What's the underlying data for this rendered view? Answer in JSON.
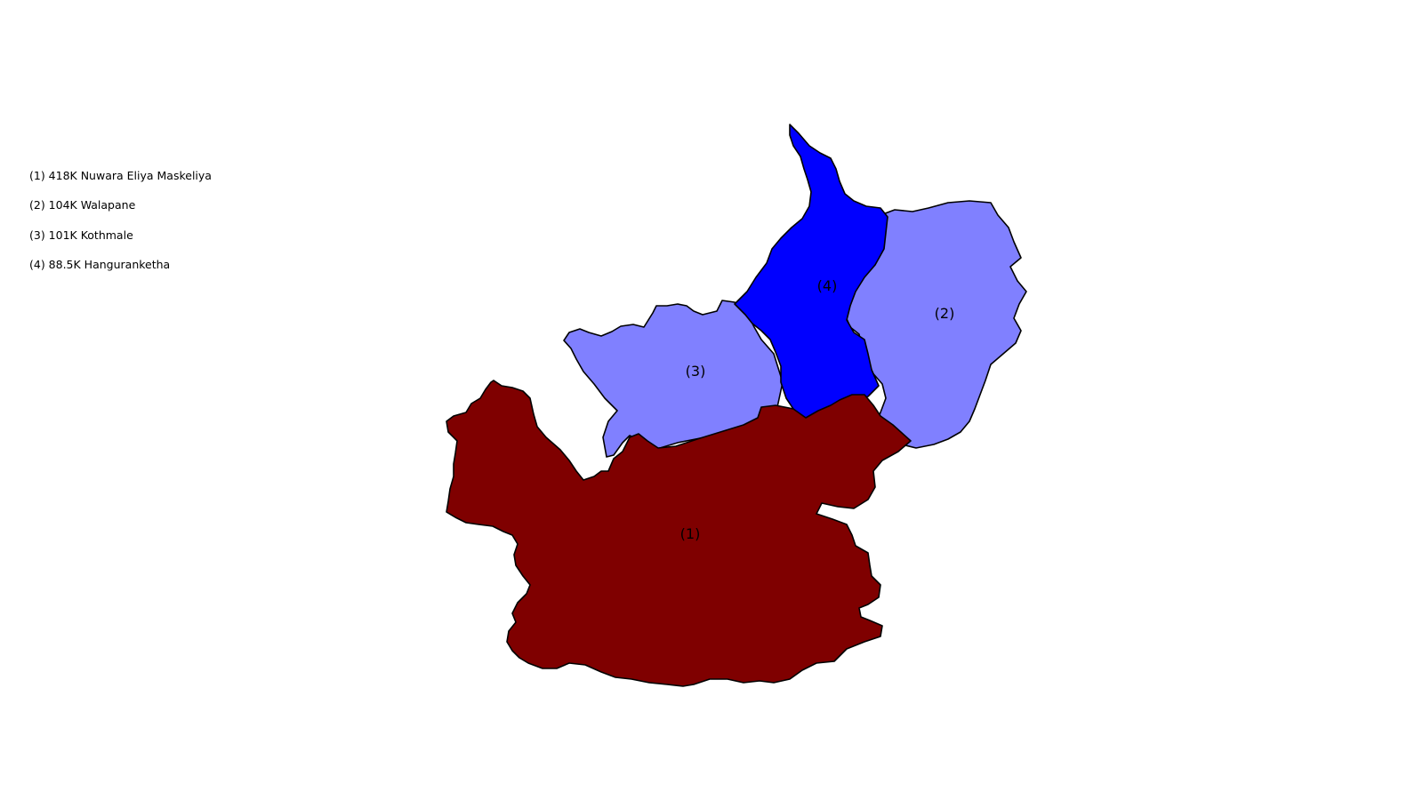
{
  "legend": [
    {
      "marker": "(1)",
      "value": "418K",
      "name": "Nuwara Eliya Maskeliya",
      "text": "(1) 418K Nuwara Eliya Maskeliya"
    },
    {
      "marker": "(2)",
      "value": "104K",
      "name": "Walapane",
      "text": "(2) 104K Walapane"
    },
    {
      "marker": "(3)",
      "value": "101K",
      "name": "Kothmale",
      "text": "(3) 101K Kothmale"
    },
    {
      "marker": "(4)",
      "value": "88.5K",
      "name": "Hanguranketha",
      "text": "(4) 88.5K Hanguranketha"
    }
  ],
  "regions": [
    {
      "id": "nuwara-eliya-maskeliya",
      "label": "(1)",
      "population": 418000,
      "color": "#7f0000"
    },
    {
      "id": "walapane",
      "label": "(2)",
      "population": 104000,
      "color": "#8080ff"
    },
    {
      "id": "kothmale",
      "label": "(3)",
      "population": 101000,
      "color": "#8080ff"
    },
    {
      "id": "hanguranketha",
      "label": "(4)",
      "population": 88500,
      "color": "#0000ff"
    }
  ]
}
